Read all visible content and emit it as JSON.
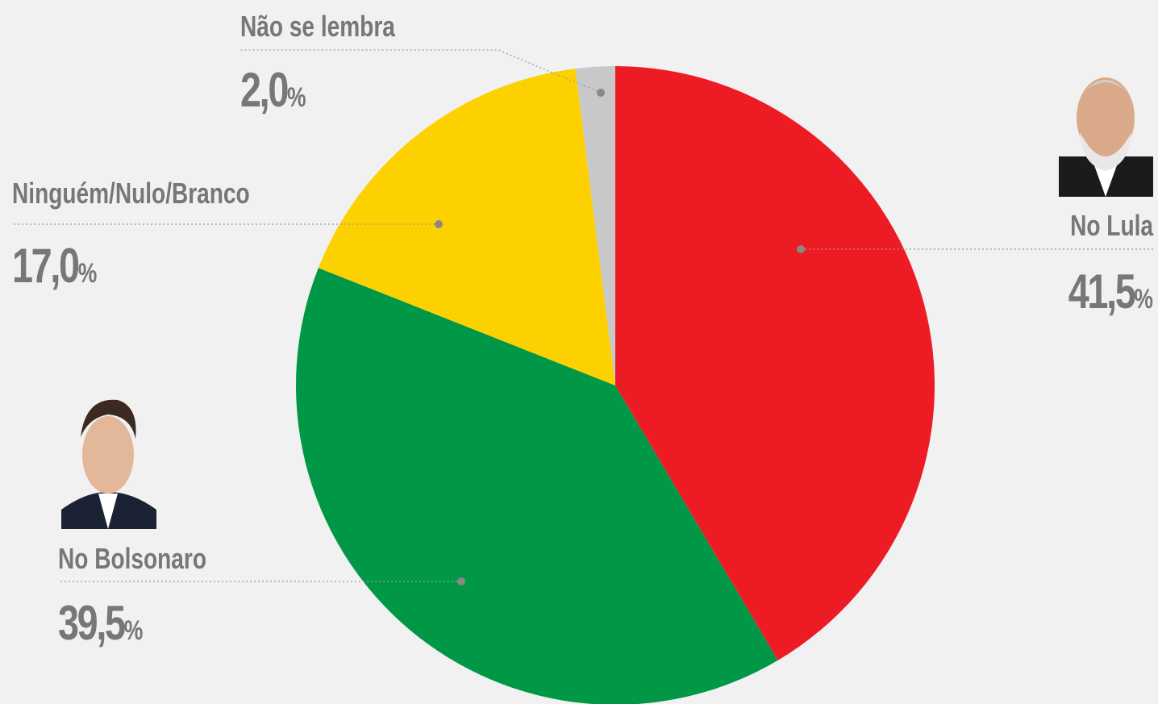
{
  "chart_data": {
    "type": "pie",
    "categories": [
      "No Lula",
      "No Bolsonaro",
      "Ninguém/Nulo/Branco",
      "Não se lembra"
    ],
    "values": [
      41.5,
      39.5,
      17.0,
      2.0
    ],
    "value_labels": [
      "41,5%",
      "39,5%",
      "17,0%",
      "2,0%"
    ],
    "colors": [
      "#ed1c24",
      "#009846",
      "#fdd000",
      "#c8c8c8"
    ]
  }
}
